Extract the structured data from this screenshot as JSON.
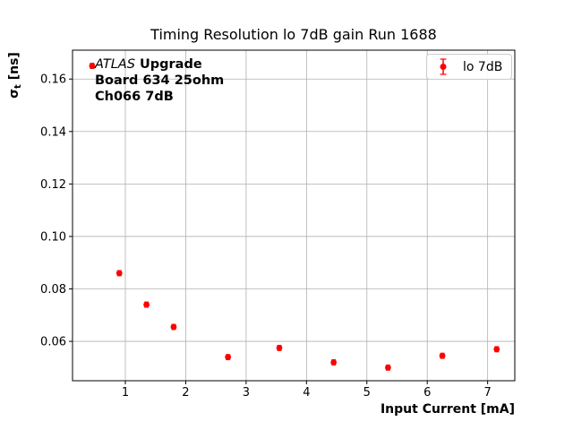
{
  "figure": {
    "background": "#ffffff"
  },
  "chart_data": {
    "type": "scatter",
    "title": "Timing Resolution lo 7dB gain Run 1688",
    "xlabel": "Input Current [mA]",
    "ylabel_sigma": "σ",
    "ylabel_sub": "t",
    "ylabel_units": " [ns]",
    "annotation": {
      "line1_italic": "ATLAS",
      "line1_bold": "Upgrade",
      "line2": "Board 634 25ohm",
      "line3": "Ch066 7dB"
    },
    "legend": {
      "label": "lo 7dB",
      "position": "upper right"
    },
    "series": [
      {
        "name": "lo 7dB",
        "color": "#ff0000",
        "marker": "circle",
        "x": [
          0.45,
          0.9,
          1.35,
          1.8,
          2.7,
          3.55,
          4.45,
          5.35,
          6.25,
          7.15
        ],
        "y": [
          0.165,
          0.086,
          0.074,
          0.0655,
          0.054,
          0.0575,
          0.052,
          0.05,
          0.0545,
          0.057
        ],
        "yerr": 0.001
      }
    ],
    "xlim": [
      0.125,
      7.45
    ],
    "ylim": [
      0.045,
      0.171
    ],
    "xticks": [
      1,
      2,
      3,
      4,
      5,
      6,
      7
    ],
    "yticks": [
      0.06,
      0.08,
      0.1,
      0.12,
      0.14,
      0.16
    ],
    "grid": true,
    "grid_color": "#b0b0b0",
    "axis_color": "#000000"
  }
}
